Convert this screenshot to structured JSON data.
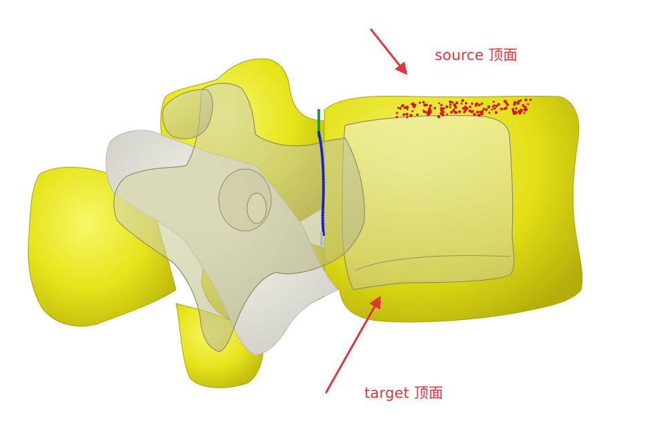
{
  "annotations": {
    "source_label": "source 顶面",
    "target_label": "target 顶面"
  },
  "colors": {
    "background": "#ffffff",
    "bone_yellow": "#e9e81a",
    "bone_yellow_light": "#f6f560",
    "bone_yellow_dark": "#b7b40c",
    "translucent_overlay": "#c8c890",
    "white_bone": "#ecebe4",
    "annotation_red": "#e8323a",
    "source_points": "#d8141c",
    "contour_green": "#1a9a2a",
    "contour_blue": "#1a1fd0"
  }
}
